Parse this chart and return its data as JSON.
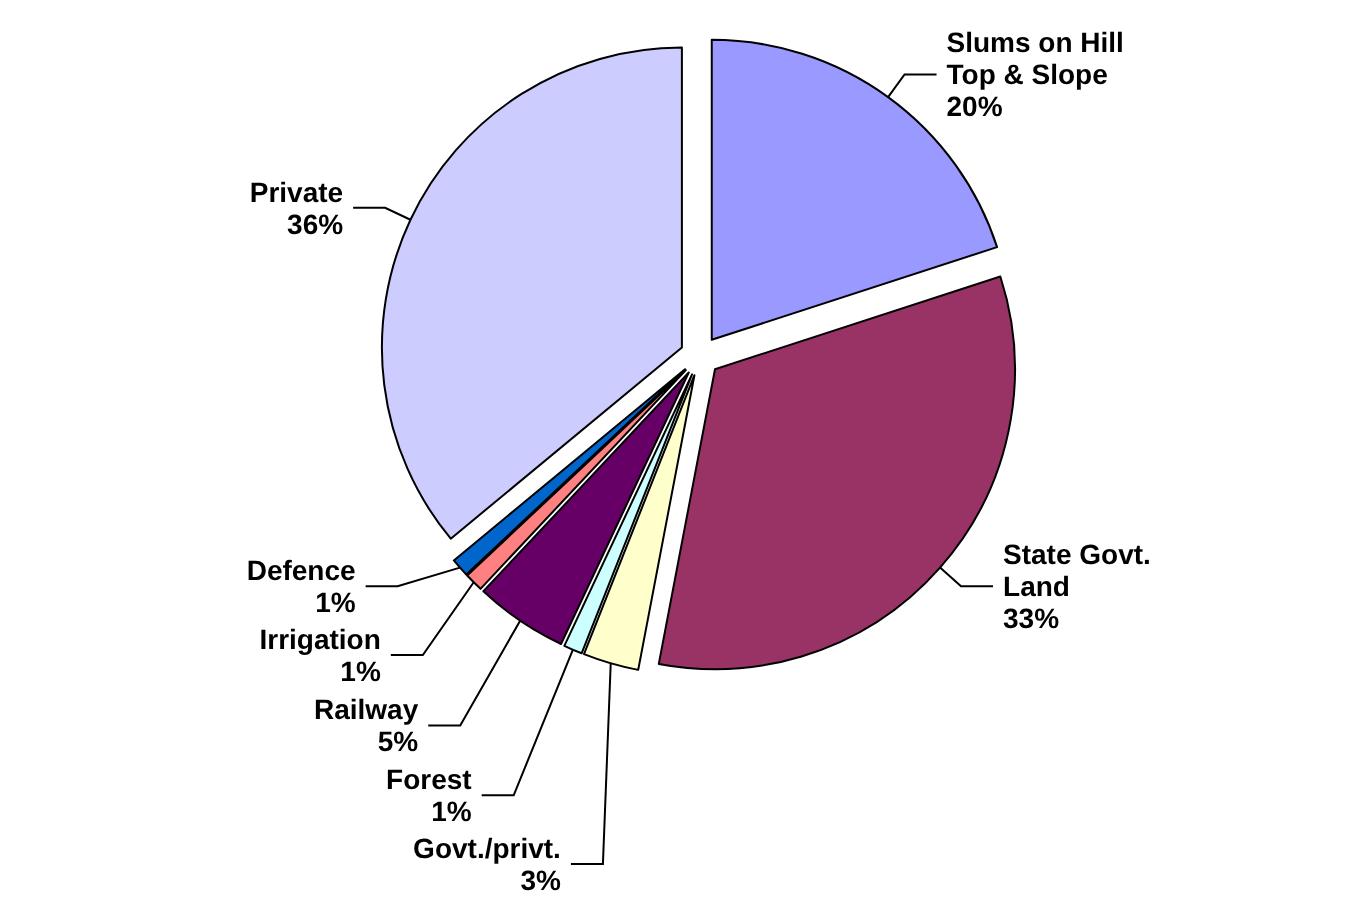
{
  "chart_data": {
    "type": "pie",
    "categories": [
      "Slums on Hill Top & Slope",
      "State Govt. Land",
      "Govt./privt.",
      "Forest",
      "Railway",
      "Irrigation",
      "Defence",
      "Private"
    ],
    "values": [
      20,
      33,
      3,
      1,
      5,
      1,
      1,
      36
    ],
    "value_labels": [
      "20%",
      "33%",
      "3%",
      "1%",
      "5%",
      "1%",
      "1%",
      "36%"
    ],
    "colors": [
      "#9999ff",
      "#993366",
      "#ffffcc",
      "#ccffff",
      "#660066",
      "#ff8080",
      "#0066cc",
      "#ccccff"
    ],
    "legend": false
  }
}
